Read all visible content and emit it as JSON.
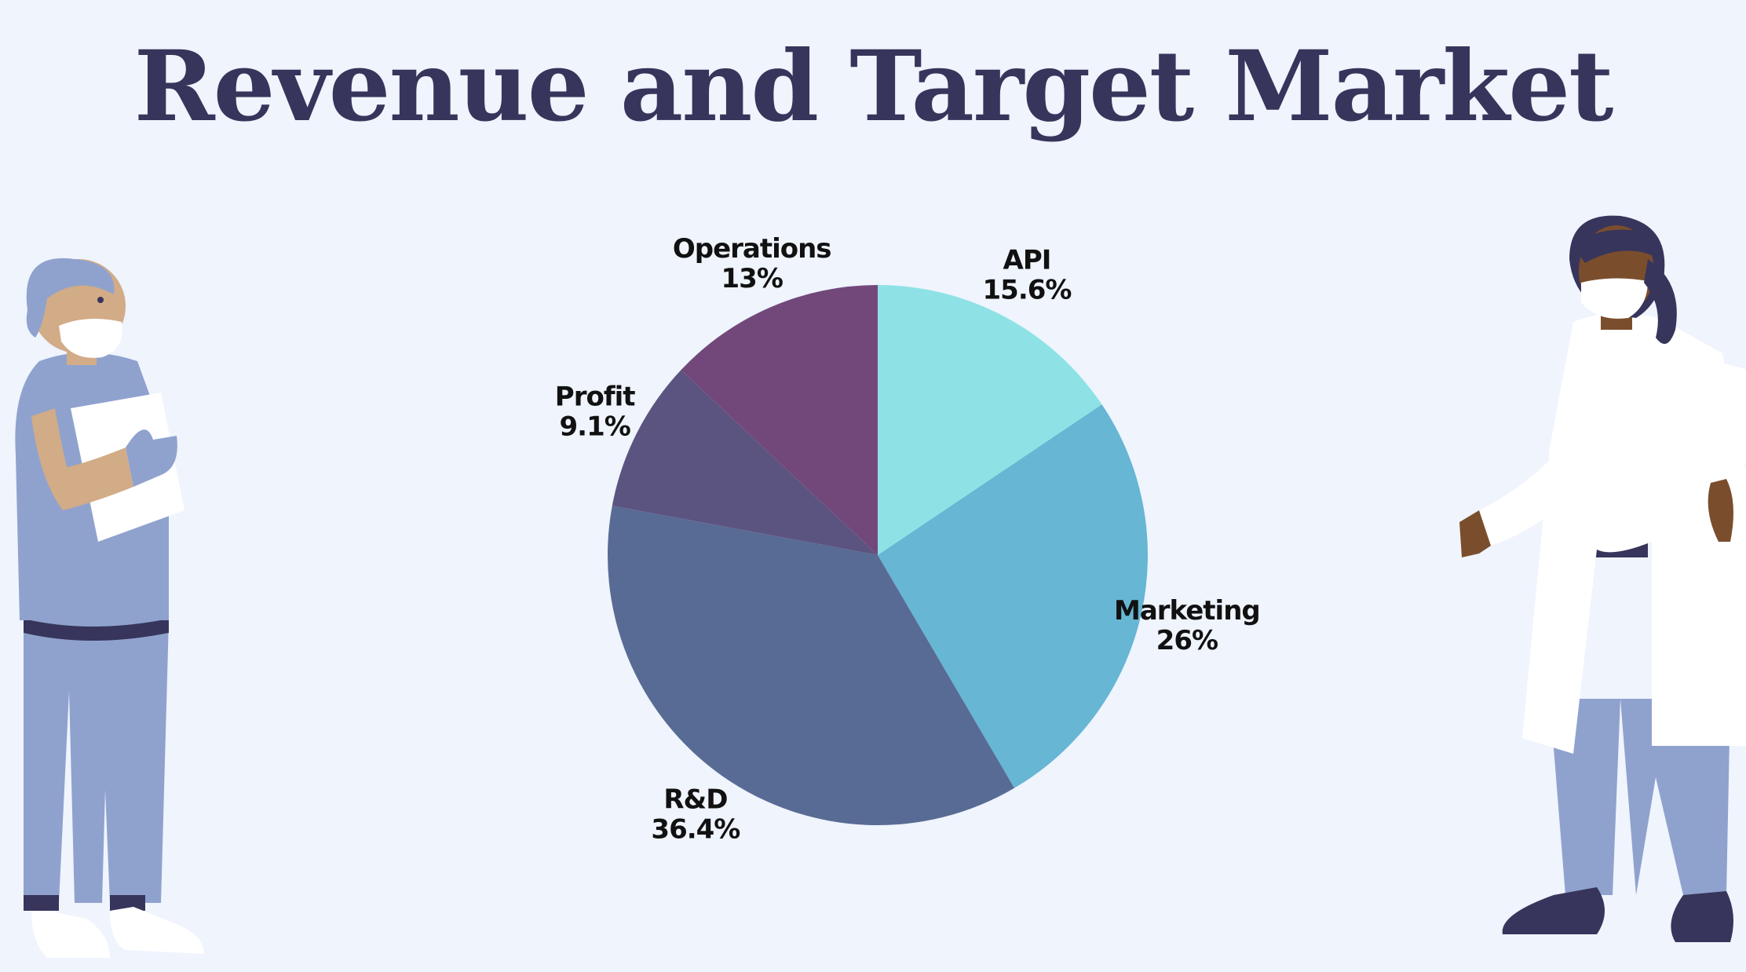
{
  "title": "Revenue and Target Market",
  "colors": {
    "background": "#eff4fd",
    "title": "#37355b"
  },
  "chart_data": {
    "type": "pie",
    "title": "Revenue and Target Market",
    "start_angle_deg": 0,
    "direction": "clockwise",
    "legend": "none",
    "slices": [
      {
        "label": "API",
        "value": 15.6,
        "display": "15.6%",
        "color": "#8ee2e6"
      },
      {
        "label": "Marketing",
        "value": 26,
        "display": "26%",
        "color": "#66b6d4"
      },
      {
        "label": "R&D",
        "value": 36.4,
        "display": "36.4%",
        "color": "#586b94"
      },
      {
        "label": "Profit",
        "value": 9.1,
        "display": "9.1%",
        "color": "#5c5480"
      },
      {
        "label": "Operations",
        "value": 13,
        "display": "13%",
        "color": "#72487a"
      }
    ]
  },
  "illustrations": {
    "left": "surgeon-with-clipboard",
    "right": "doctor-in-lab-coat"
  }
}
